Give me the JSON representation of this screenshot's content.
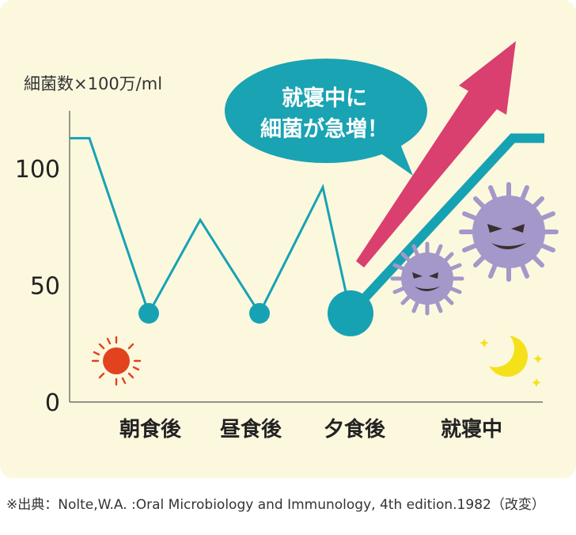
{
  "chart_data": {
    "type": "line",
    "ylabel": "細菌数×100万/ml",
    "yticks": [
      0,
      50,
      100
    ],
    "ylim": [
      0,
      120
    ],
    "categories": [
      "朝食後",
      "昼食後",
      "夕食後",
      "就寝中"
    ],
    "series": [
      {
        "points": [
          {
            "x": 0.0,
            "y": 113
          },
          {
            "x": 0.25,
            "y": 113
          },
          {
            "x": 1.0,
            "y": 38
          },
          {
            "x": 1.65,
            "y": 78
          },
          {
            "x": 2.4,
            "y": 38
          },
          {
            "x": 3.2,
            "y": 92
          },
          {
            "x": 3.55,
            "y": 38
          },
          {
            "x": 5.6,
            "y": 113
          },
          {
            "x": 6.0,
            "y": 113
          }
        ]
      }
    ],
    "highlight_points": [
      {
        "x": 1.0,
        "y": 38,
        "size": "small"
      },
      {
        "x": 2.4,
        "y": 38,
        "size": "small"
      },
      {
        "x": 3.55,
        "y": 38,
        "size": "large"
      }
    ],
    "callout": [
      "就寝中に",
      "細菌が急増！"
    ],
    "grid": false
  },
  "colors": {
    "line": "#17a2b4",
    "callout": "#1aa3b2",
    "arrow": "#d93f6f",
    "sun": "#e2431e",
    "moon": "#f5e11a",
    "germ": "#a497c9",
    "panel": "#fcf8de"
  },
  "icons": [
    "sun-icon",
    "moon-icon",
    "star-icon",
    "germ-icon",
    "trend-arrow-icon"
  ],
  "source": "※出典：Nolte,W.A. :Oral Microbiology and Immunology, 4th edition.1982（改変）"
}
